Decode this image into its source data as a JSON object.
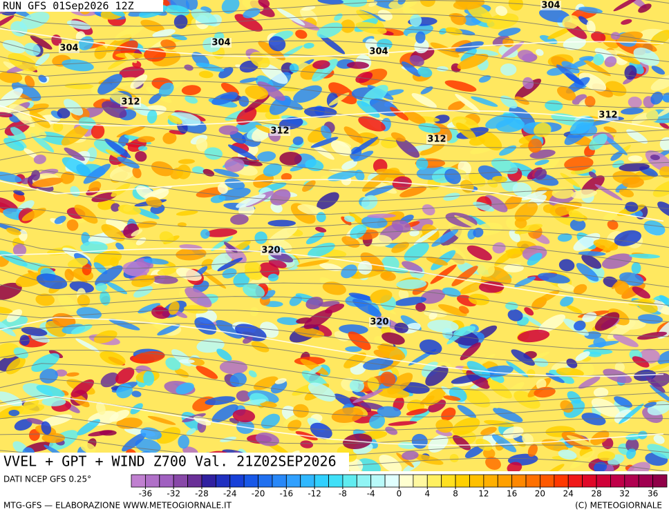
{
  "header": {
    "run": "RUN GFS 01Sep2026 12Z"
  },
  "contour_labels": [
    "304",
    "304",
    "304",
    "304",
    "312",
    "312",
    "312",
    "312",
    "320",
    "320"
  ],
  "map_title": "VVEL + GPT + WIND Z700 Val. 21Z02SEP2026",
  "source": "DATI NCEP GFS 0.25°",
  "colorbar": {
    "lim": [
      -38,
      38
    ],
    "ticks": [
      -36,
      -32,
      -28,
      -24,
      -20,
      -16,
      -12,
      -8,
      -4,
      0,
      4,
      8,
      12,
      16,
      20,
      24,
      28,
      32,
      36
    ],
    "colors": [
      "#c080d0",
      "#b070c8",
      "#a060c0",
      "#8848a8",
      "#6a3098",
      "#3020a0",
      "#2030c0",
      "#1840d8",
      "#1858e8",
      "#2070f0",
      "#2888f8",
      "#30a0ff",
      "#30b8ff",
      "#30d0ff",
      "#40e0f8",
      "#60ecf0",
      "#90f4f4",
      "#b8fafa",
      "#e0ffff",
      "#ffffd0",
      "#fff8a0",
      "#fff060",
      "#ffe020",
      "#ffd000",
      "#ffc000",
      "#ffb000",
      "#ffa000",
      "#ff8800",
      "#ff7000",
      "#ff5800",
      "#ff3800",
      "#f01818",
      "#e00828",
      "#d00038",
      "#c00048",
      "#b00050",
      "#a00050",
      "#900048"
    ]
  },
  "footer": {
    "left": "MTG-GFS — ELABORAZIONE WWW.METEOGIORNALE.IT",
    "right": "(C) METEOGIORNALE"
  }
}
